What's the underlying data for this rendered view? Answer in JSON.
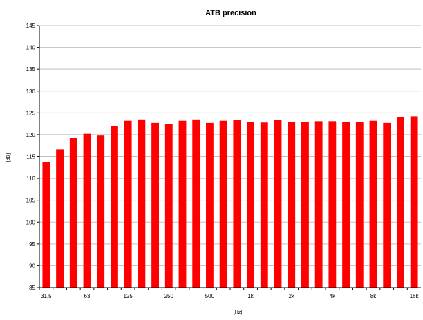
{
  "chart_data": {
    "type": "bar",
    "title": "ATB precision",
    "xlabel": "[Hz]",
    "ylabel": "[dB]",
    "ylim": [
      85,
      145
    ],
    "yticks": [
      85,
      90,
      95,
      100,
      105,
      110,
      115,
      120,
      125,
      130,
      135,
      140,
      145
    ],
    "grid": "horizontal",
    "categories": [
      "31,5",
      "_",
      "_",
      "63",
      "_",
      "_",
      "125",
      "_",
      "_",
      "250",
      "_",
      "_",
      "500",
      "_",
      "_",
      "1k",
      "_",
      "_",
      "2k",
      "_",
      "_",
      "4k",
      "_",
      "_",
      "8k",
      "_",
      "_",
      "16k"
    ],
    "values": [
      113.7,
      116.6,
      119.3,
      120.2,
      119.8,
      122.0,
      123.2,
      123.5,
      122.7,
      122.5,
      123.2,
      123.5,
      122.7,
      123.2,
      123.4,
      122.9,
      122.8,
      123.4,
      122.9,
      122.9,
      123.1,
      123.1,
      122.9,
      122.9,
      123.2,
      122.7,
      124.0,
      124.2
    ],
    "bar_color": "#ff0000"
  }
}
